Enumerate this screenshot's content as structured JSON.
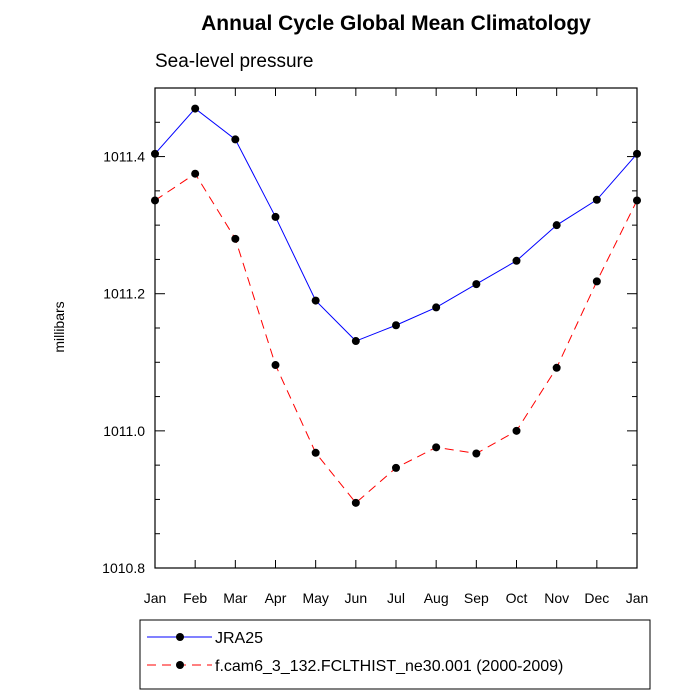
{
  "chart_data": {
    "type": "line",
    "title": "Annual Cycle Global Mean Climatology",
    "subtitle": "Sea-level pressure",
    "xlabel": "",
    "ylabel": "millibars",
    "categories": [
      "Jan",
      "Feb",
      "Mar",
      "Apr",
      "May",
      "Jun",
      "Jul",
      "Aug",
      "Sep",
      "Oct",
      "Nov",
      "Dec",
      "Jan"
    ],
    "ylim": [
      1010.8,
      1011.5
    ],
    "yticks": [
      1010.8,
      1011.0,
      1011.2,
      1011.4
    ],
    "ytick_labels": [
      "1010.8",
      "1011.0",
      "1011.2",
      "1011.4"
    ],
    "minor_ytick_step": 0.05,
    "grid": false,
    "legend_position": "bottom",
    "series": [
      {
        "name": "JRA25",
        "color": "#0000ff",
        "dash": "solid",
        "marker": "filled-circle",
        "values": [
          1011.404,
          1011.47,
          1011.425,
          1011.312,
          1011.19,
          1011.131,
          1011.154,
          1011.18,
          1011.214,
          1011.248,
          1011.3,
          1011.337,
          1011.404
        ]
      },
      {
        "name": "f.cam6_3_132.FCLTHIST_ne30.001 (2000-2009)",
        "color": "#ff0000",
        "dash": "dashed",
        "marker": "filled-circle",
        "values": [
          1011.336,
          1011.375,
          1011.28,
          1011.096,
          1010.968,
          1010.895,
          1010.946,
          1010.976,
          1010.967,
          1011.0,
          1011.092,
          1011.218,
          1011.336
        ]
      }
    ]
  }
}
